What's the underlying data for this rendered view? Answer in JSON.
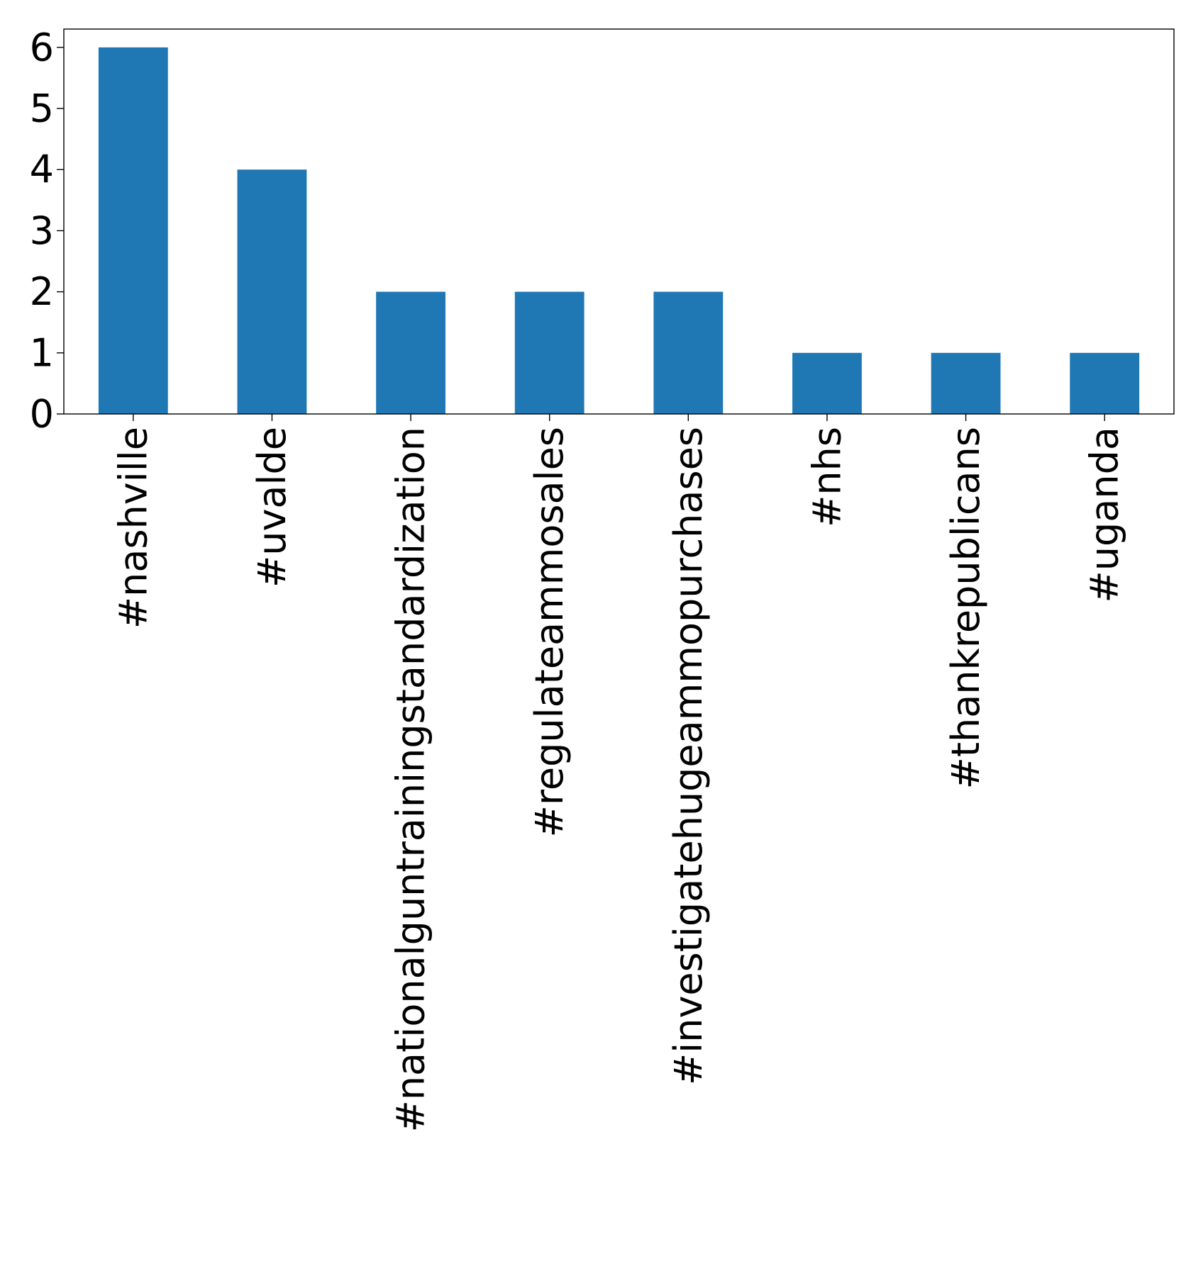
{
  "chart_data": {
    "type": "bar",
    "title": "",
    "xlabel": "",
    "ylabel": "",
    "categories": [
      "#nashville",
      "#uvalde",
      "#nationalguntrainingstandardization",
      "#regulateammosales",
      "#investigatehugeammopurchases",
      "#nhs",
      "#thankrepublicans",
      "#uganda"
    ],
    "values": [
      6,
      4,
      2,
      2,
      2,
      1,
      1,
      1
    ],
    "ylim": [
      0,
      6.3
    ],
    "yticks": [
      0,
      1,
      2,
      3,
      4,
      5,
      6
    ],
    "grid": false,
    "legend": "none",
    "bar_color": "#1f77b4"
  }
}
